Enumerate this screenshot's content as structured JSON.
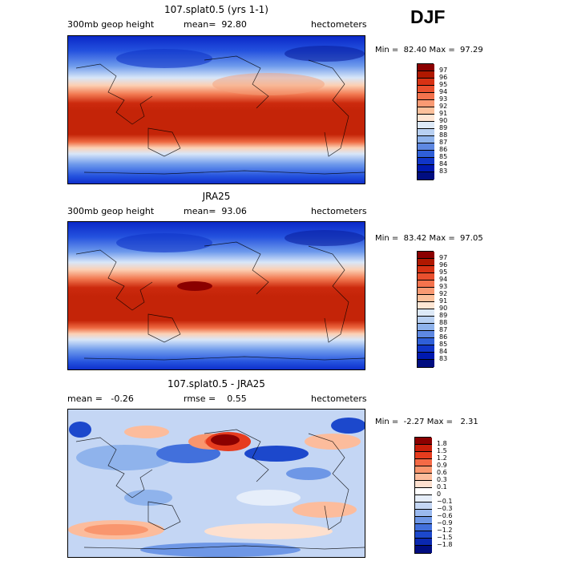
{
  "season": "DJF",
  "panels": [
    {
      "title": "107.splat0.5 (yrs 1-1)",
      "left_label": "300mb geop height",
      "mid_label": "mean=  92.80",
      "right_label": "hectometers",
      "minmax": "Min =  82.40 Max =  97.29",
      "colorbar": {
        "labels": [
          "97",
          "96",
          "95",
          "94",
          "93",
          "92",
          "91",
          "90",
          "89",
          "88",
          "87",
          "86",
          "85",
          "84",
          "83"
        ],
        "colors": [
          "#8b0000",
          "#b01800",
          "#d73214",
          "#e9502e",
          "#f4734d",
          "#f99a73",
          "#fcc19c",
          "#fee6d4",
          "#dde9f7",
          "#b8d0f2",
          "#8fb3ec",
          "#5e88e2",
          "#2f5fd8",
          "#1035c8",
          "#0019b0",
          "#000d80"
        ]
      }
    },
    {
      "title": "JRA25",
      "left_label": "300mb geop height",
      "mid_label": "mean=  93.06",
      "right_label": "hectometers",
      "minmax": "Min =  83.42 Max =  97.05",
      "colorbar": {
        "labels": [
          "97",
          "96",
          "95",
          "94",
          "93",
          "92",
          "91",
          "90",
          "89",
          "88",
          "87",
          "86",
          "85",
          "84",
          "83"
        ],
        "colors": [
          "#8b0000",
          "#b01800",
          "#d73214",
          "#e9502e",
          "#f4734d",
          "#f99a73",
          "#fcc19c",
          "#fee6d4",
          "#dde9f7",
          "#b8d0f2",
          "#8fb3ec",
          "#5e88e2",
          "#2f5fd8",
          "#1035c8",
          "#0019b0",
          "#000d80"
        ]
      }
    },
    {
      "title": "107.splat0.5 - JRA25",
      "left_label": "mean =   -0.26",
      "mid_label": "rmse =    0.55",
      "right_label": "hectometers",
      "minmax": "Min =  -2.27 Max =   2.31",
      "colorbar": {
        "labels": [
          "1.8",
          "1.5",
          "1.2",
          "0.9",
          "0.6",
          "0.3",
          "0.1",
          "0",
          "−0.1",
          "−0.3",
          "−0.6",
          "−0.9",
          "−1.2",
          "−1.5",
          "−1.8"
        ],
        "colors": [
          "#8b0000",
          "#c81e0a",
          "#e63c1e",
          "#f46a46",
          "#f9966e",
          "#fcbc9c",
          "#fde0cf",
          "#ffffff",
          "#e6eefa",
          "#c4d6f4",
          "#9ab9ee",
          "#6e97e6",
          "#4270dc",
          "#1c48cc",
          "#0a28b0",
          "#000d80"
        ]
      }
    }
  ]
}
